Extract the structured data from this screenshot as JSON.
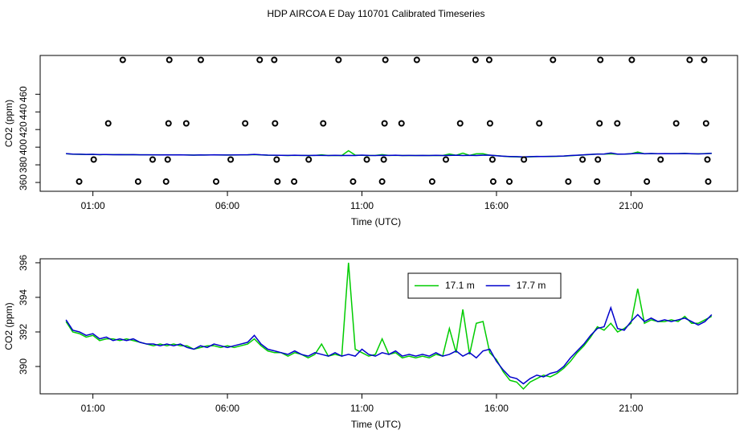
{
  "chart_data": [
    {
      "type": "scatter",
      "title": "HDP AIRCOA E  Day 110701  Calibrated Timeseries",
      "xlabel": "Time (UTC)",
      "ylabel": "CO2 (ppm)",
      "xlim": [
        -0.96,
        24.96
      ],
      "ylim": [
        350,
        504
      ],
      "xticks": [
        {
          "value": 1,
          "label": "01:00"
        },
        {
          "value": 6,
          "label": "06:00"
        },
        {
          "value": 11,
          "label": "11:00"
        },
        {
          "value": 16,
          "label": "16:00"
        },
        {
          "value": 21,
          "label": "21:00"
        }
      ],
      "yticks": [
        360,
        380,
        400,
        420,
        440,
        460
      ],
      "color": "#000000",
      "points": {
        "x": [
          2.11,
          3.84,
          5.01,
          7.2,
          7.74,
          10.13,
          11.87,
          13.04,
          15.22,
          15.73,
          18.1,
          19.86,
          21.03,
          23.18,
          23.72,
          1.57,
          3.81,
          4.47,
          6.66,
          7.77,
          9.56,
          11.84,
          12.47,
          14.65,
          15.76,
          17.59,
          19.83,
          20.49,
          22.68,
          23.79,
          1.03,
          3.22,
          3.78,
          6.12,
          7.83,
          9.02,
          11.18,
          11.81,
          14.12,
          15.85,
          17.02,
          19.2,
          19.77,
          22.1,
          23.84,
          0.49,
          2.68,
          3.72,
          5.58,
          7.86,
          8.48,
          10.67,
          11.75,
          13.61,
          15.88,
          16.48,
          18.67,
          19.74,
          21.59,
          23.87
        ],
        "y": [
          499,
          499,
          499,
          499,
          499,
          499,
          499,
          499,
          499,
          499,
          499,
          499,
          499,
          499,
          499,
          427,
          427,
          427,
          427,
          427,
          427,
          427,
          427,
          427,
          427,
          427,
          427,
          427,
          427,
          427,
          386,
          386,
          386,
          386,
          386,
          386,
          386,
          386,
          386,
          386,
          386,
          386,
          386,
          386,
          386,
          361,
          361,
          361,
          361,
          361,
          361,
          361,
          361,
          361,
          361,
          361,
          361,
          361,
          361,
          361
        ]
      }
    },
    {
      "type": "line",
      "xlabel": "Time (UTC)",
      "ylabel": "CO2 (ppm)",
      "xlim": [
        -0.96,
        24.96
      ],
      "ylim": [
        388.42,
        396.23
      ],
      "xticks": [
        {
          "value": 1,
          "label": "01:00"
        },
        {
          "value": 6,
          "label": "06:00"
        },
        {
          "value": 11,
          "label": "11:00"
        },
        {
          "value": 16,
          "label": "16:00"
        },
        {
          "value": 21,
          "label": "21:00"
        }
      ],
      "yticks": [
        390,
        392,
        394,
        396
      ],
      "legend": "top",
      "x": [
        0,
        0.25,
        0.5,
        0.75,
        1,
        1.25,
        1.5,
        1.75,
        2,
        2.25,
        2.5,
        2.75,
        3,
        3.25,
        3.5,
        3.75,
        4,
        4.25,
        4.5,
        4.75,
        5,
        5.25,
        5.5,
        5.75,
        6,
        6.25,
        6.5,
        6.75,
        7,
        7.25,
        7.5,
        7.75,
        8,
        8.25,
        8.5,
        8.75,
        9,
        9.25,
        9.5,
        9.75,
        10,
        10.25,
        10.5,
        10.75,
        11,
        11.25,
        11.5,
        11.75,
        12,
        12.25,
        12.5,
        12.75,
        13,
        13.25,
        13.5,
        13.75,
        14,
        14.25,
        14.5,
        14.75,
        15,
        15.25,
        15.5,
        15.75,
        16,
        16.25,
        16.5,
        16.75,
        17,
        17.25,
        17.5,
        17.75,
        18,
        18.25,
        18.5,
        18.75,
        19,
        19.25,
        19.5,
        19.75,
        20,
        20.25,
        20.5,
        20.75,
        21,
        21.25,
        21.5,
        21.75,
        22,
        22.25,
        22.5,
        22.75,
        23,
        23.25,
        23.5,
        23.75,
        24
      ],
      "series": [
        {
          "name": "17.1 m",
          "color": "#00cc00",
          "values": [
            392.6,
            392.0,
            391.9,
            391.7,
            391.8,
            391.5,
            391.6,
            391.6,
            391.5,
            391.6,
            391.5,
            391.4,
            391.3,
            391.2,
            391.3,
            391.2,
            391.3,
            391.2,
            391.2,
            391.0,
            391.1,
            391.2,
            391.2,
            391.1,
            391.2,
            391.1,
            391.2,
            391.3,
            391.6,
            391.2,
            390.9,
            390.8,
            390.8,
            390.6,
            390.8,
            390.7,
            390.5,
            390.7,
            391.3,
            390.6,
            390.7,
            390.6,
            396.0,
            391.0,
            390.8,
            390.6,
            390.7,
            391.6,
            390.7,
            390.8,
            390.5,
            390.6,
            390.5,
            390.6,
            390.5,
            390.7,
            390.6,
            392.2,
            390.8,
            393.3,
            390.7,
            392.5,
            392.6,
            390.8,
            390.4,
            389.7,
            389.2,
            389.1,
            388.7,
            389.1,
            389.3,
            389.5,
            389.4,
            389.6,
            389.9,
            390.3,
            390.8,
            391.2,
            391.7,
            392.3,
            392.1,
            392.5,
            392.0,
            392.2,
            392.5,
            394.5,
            392.5,
            392.7,
            392.6,
            392.6,
            392.7,
            392.6,
            392.9,
            392.5,
            392.5,
            392.7,
            392.9
          ]
        },
        {
          "name": "17.7 m",
          "color": "#0000cc",
          "values": [
            392.7,
            392.1,
            392.0,
            391.8,
            391.9,
            391.6,
            391.7,
            391.5,
            391.6,
            391.5,
            391.6,
            391.4,
            391.3,
            391.3,
            391.2,
            391.3,
            391.2,
            391.3,
            391.1,
            391.0,
            391.2,
            391.1,
            391.3,
            391.2,
            391.1,
            391.2,
            391.3,
            391.4,
            391.8,
            391.3,
            391.0,
            390.9,
            390.8,
            390.7,
            390.9,
            390.7,
            390.6,
            390.8,
            390.7,
            390.6,
            390.8,
            390.6,
            390.7,
            390.6,
            391.0,
            390.7,
            390.6,
            390.8,
            390.7,
            390.9,
            390.6,
            390.7,
            390.6,
            390.7,
            390.6,
            390.8,
            390.6,
            390.7,
            390.9,
            390.6,
            390.8,
            390.5,
            390.9,
            391.0,
            390.3,
            389.8,
            389.4,
            389.3,
            389.0,
            389.3,
            389.5,
            389.4,
            389.6,
            389.7,
            390.0,
            390.5,
            390.9,
            391.3,
            391.8,
            392.2,
            392.3,
            393.4,
            392.2,
            392.1,
            392.6,
            393.0,
            392.6,
            392.8,
            392.6,
            392.7,
            392.6,
            392.7,
            392.8,
            392.6,
            392.4,
            392.6,
            393.0
          ]
        }
      ]
    }
  ]
}
